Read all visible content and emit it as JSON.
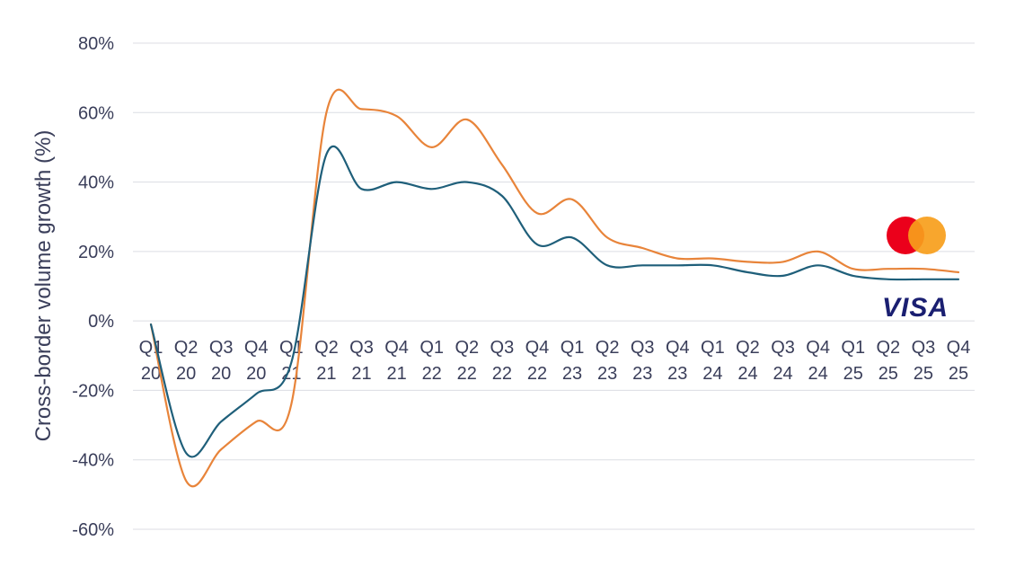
{
  "chart_data": {
    "type": "line",
    "ylabel": "Cross-border volume growth (%)",
    "ylim": [
      -60,
      80
    ],
    "yticks": [
      80,
      60,
      40,
      20,
      0,
      -20,
      -40,
      -60
    ],
    "ytick_labels": [
      "80%",
      "60%",
      "40%",
      "20%",
      "0%",
      "-20%",
      "-40%",
      "-60%"
    ],
    "grid": true,
    "categories": [
      {
        "q": "Q1",
        "y": "20"
      },
      {
        "q": "Q2",
        "y": "20"
      },
      {
        "q": "Q3",
        "y": "20"
      },
      {
        "q": "Q4",
        "y": "20"
      },
      {
        "q": "Q1",
        "y": "21"
      },
      {
        "q": "Q2",
        "y": "21"
      },
      {
        "q": "Q3",
        "y": "21"
      },
      {
        "q": "Q4",
        "y": "21"
      },
      {
        "q": "Q1",
        "y": "22"
      },
      {
        "q": "Q2",
        "y": "22"
      },
      {
        "q": "Q3",
        "y": "22"
      },
      {
        "q": "Q4",
        "y": "22"
      },
      {
        "q": "Q1",
        "y": "23"
      },
      {
        "q": "Q2",
        "y": "23"
      },
      {
        "q": "Q3",
        "y": "23"
      },
      {
        "q": "Q4",
        "y": "23"
      },
      {
        "q": "Q1",
        "y": "24"
      },
      {
        "q": "Q2",
        "y": "24"
      },
      {
        "q": "Q3",
        "y": "24"
      },
      {
        "q": "Q4",
        "y": "24"
      },
      {
        "q": "Q1",
        "y": "25"
      },
      {
        "q": "Q2",
        "y": "25"
      },
      {
        "q": "Q3",
        "y": "25"
      },
      {
        "q": "Q4",
        "y": "25"
      }
    ],
    "series": [
      {
        "brand": "mastercard",
        "color": "#e8843a",
        "values": [
          -1,
          -46,
          -37,
          -29,
          -24,
          60,
          61,
          59,
          50,
          58,
          45,
          31,
          35,
          24,
          21,
          18,
          18,
          17,
          17,
          20,
          15,
          15,
          15,
          14
        ]
      },
      {
        "brand": "visa",
        "color": "#1f5f7a",
        "values": [
          -1,
          -38,
          -29,
          -21,
          -12,
          48,
          38,
          40,
          38,
          40,
          36,
          22,
          24,
          16,
          16,
          16,
          16,
          14,
          13,
          16,
          13,
          12,
          12,
          12
        ]
      }
    ],
    "legend": {
      "placement": "right",
      "entries": [
        {
          "brand": "mastercard",
          "icon": "mastercard-logo-icon",
          "colors": [
            "#eb001b",
            "#f79e1b"
          ]
        },
        {
          "brand": "visa",
          "icon": "visa-logo-icon",
          "wordmark": "VISA",
          "color": "#1a1f71"
        }
      ]
    }
  }
}
